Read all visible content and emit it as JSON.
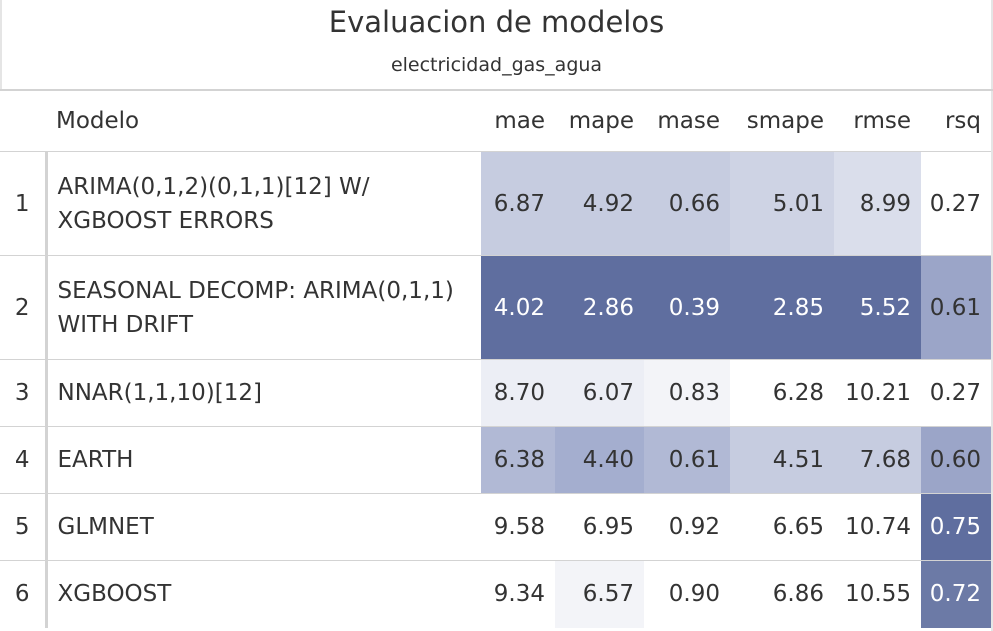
{
  "title": "Evaluacion de modelos",
  "subtitle": "electricidad_gas_agua",
  "columns": [
    "",
    "Modelo",
    "mae",
    "mape",
    "mase",
    "smape",
    "rmse",
    "rsq"
  ],
  "rows": [
    {
      "idx": "1",
      "model": "ARIMA(0,1,2)(0,1,1)[12] W/ XGBOOST ERRORS",
      "mae": "6.87",
      "mape": "4.92",
      "mase": "0.66",
      "smape": "5.01",
      "rmse": "8.99",
      "rsq": "0.27"
    },
    {
      "idx": "2",
      "model": "SEASONAL DECOMP: ARIMA(0,1,1) WITH DRIFT",
      "mae": "4.02",
      "mape": "2.86",
      "mase": "0.39",
      "smape": "2.85",
      "rmse": "5.52",
      "rsq": "0.61"
    },
    {
      "idx": "3",
      "model": "NNAR(1,1,10)[12]",
      "mae": "8.70",
      "mape": "6.07",
      "mase": "0.83",
      "smape": "6.28",
      "rmse": "10.21",
      "rsq": "0.27"
    },
    {
      "idx": "4",
      "model": "EARTH",
      "mae": "6.38",
      "mape": "4.40",
      "mase": "0.61",
      "smape": "4.51",
      "rmse": "7.68",
      "rsq": "0.60"
    },
    {
      "idx": "5",
      "model": "GLMNET",
      "mae": "9.58",
      "mape": "6.95",
      "mase": "0.92",
      "smape": "6.65",
      "rmse": "10.74",
      "rsq": "0.75"
    },
    {
      "idx": "6",
      "model": "XGBOOST",
      "mae": "9.34",
      "mape": "6.57",
      "mase": "0.90",
      "smape": "6.86",
      "rmse": "10.55",
      "rsq": "0.72"
    }
  ],
  "cell_colors": [
    {
      "mae": "#c6cce0",
      "mape": "#c6cce0",
      "mase": "#c6cce0",
      "smape": "#ced3e4",
      "rmse": "#dadeeb",
      "rsq": "#ffffff"
    },
    {
      "mae": "#5f6e9f",
      "mape": "#5f6e9f",
      "mase": "#5f6e9f",
      "smape": "#5f6e9f",
      "rmse": "#5f6e9f",
      "rsq": "#9ba5c8"
    },
    {
      "mae": "#eceef5",
      "mape": "#eceef5",
      "mase": "#f3f4f8",
      "smape": "#ffffff",
      "rmse": "#ffffff",
      "rsq": "#ffffff"
    },
    {
      "mae": "#b1b9d5",
      "mape": "#a4aecf",
      "mase": "#b1b9d5",
      "smape": "#c6cce0",
      "rmse": "#c6cce0",
      "rsq": "#9ba5c8"
    },
    {
      "mae": "#ffffff",
      "mape": "#ffffff",
      "mase": "#ffffff",
      "smape": "#ffffff",
      "rmse": "#ffffff",
      "rsq": "#5f6e9f"
    },
    {
      "mae": "#ffffff",
      "mape": "#f3f4f8",
      "mase": "#ffffff",
      "smape": "#ffffff",
      "rmse": "#ffffff",
      "rsq": "#6c7aa6"
    }
  ],
  "dark_cells": [
    {
      "mae": false,
      "mape": false,
      "mase": false,
      "smape": false,
      "rmse": false,
      "rsq": false
    },
    {
      "mae": true,
      "mape": true,
      "mase": true,
      "smape": true,
      "rmse": true,
      "rsq": false
    },
    {
      "mae": false,
      "mape": false,
      "mase": false,
      "smape": false,
      "rmse": false,
      "rsq": false
    },
    {
      "mae": false,
      "mape": false,
      "mase": false,
      "smape": false,
      "rmse": false,
      "rsq": false
    },
    {
      "mae": false,
      "mape": false,
      "mase": false,
      "smape": false,
      "rmse": false,
      "rsq": true
    },
    {
      "mae": false,
      "mape": false,
      "mase": false,
      "smape": false,
      "rmse": false,
      "rsq": true
    }
  ]
}
